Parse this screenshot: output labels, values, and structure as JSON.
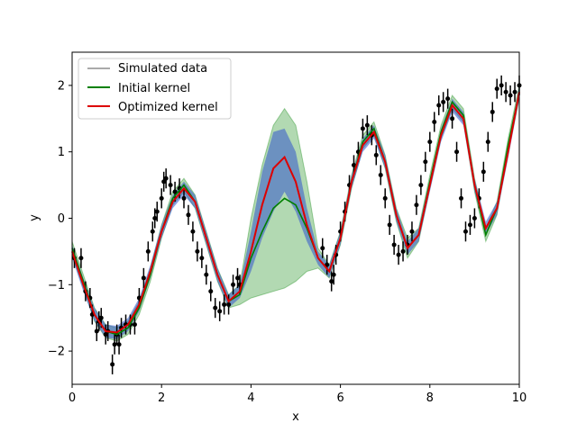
{
  "chart_data": {
    "type": "line",
    "xlabel": "x",
    "ylabel": "y",
    "xlim": [
      0,
      10
    ],
    "ylim": [
      -2.5,
      2.5
    ],
    "xticks": [
      0,
      2,
      4,
      6,
      8,
      10
    ],
    "yticks": [
      -2,
      -1,
      0,
      1,
      2
    ],
    "grid": false,
    "legend": {
      "placement": "top-left",
      "entries": [
        {
          "label": "Simulated data",
          "color": "#aaaaaa"
        },
        {
          "label": "Initial kernel",
          "color": "#008000"
        },
        {
          "label": "Optimized kernel",
          "color": "#dd0000"
        }
      ]
    },
    "data_gap": [
      3.8,
      5.5
    ],
    "data_points": {
      "x": [
        0.05,
        0.2,
        0.3,
        0.4,
        0.45,
        0.55,
        0.6,
        0.65,
        0.75,
        0.8,
        0.9,
        0.95,
        1.0,
        1.05,
        1.1,
        1.2,
        1.3,
        1.4,
        1.5,
        1.6,
        1.7,
        1.8,
        1.85,
        1.9,
        2.0,
        2.05,
        2.1,
        2.2,
        2.3,
        2.4,
        2.5,
        2.6,
        2.7,
        2.8,
        2.9,
        3.0,
        3.1,
        3.2,
        3.3,
        3.4,
        3.5,
        3.6,
        3.7,
        3.75,
        5.6,
        5.7,
        5.8,
        5.85,
        5.9,
        6.0,
        6.1,
        6.2,
        6.3,
        6.4,
        6.5,
        6.6,
        6.7,
        6.8,
        6.9,
        7.0,
        7.1,
        7.2,
        7.3,
        7.4,
        7.5,
        7.6,
        7.7,
        7.8,
        7.9,
        8.0,
        8.1,
        8.2,
        8.3,
        8.4,
        8.5,
        8.6,
        8.7,
        8.8,
        8.9,
        9.0,
        9.1,
        9.2,
        9.3,
        9.4,
        9.5,
        9.6,
        9.7,
        9.8,
        9.9,
        10.0
      ],
      "y": [
        -0.6,
        -0.6,
        -1.1,
        -1.2,
        -1.45,
        -1.7,
        -1.55,
        -1.5,
        -1.75,
        -1.7,
        -2.2,
        -1.9,
        -1.75,
        -1.9,
        -1.65,
        -1.6,
        -1.6,
        -1.6,
        -1.2,
        -0.9,
        -0.5,
        -0.2,
        0.0,
        0.1,
        0.3,
        0.55,
        0.6,
        0.5,
        0.4,
        0.45,
        0.3,
        0.05,
        -0.2,
        -0.5,
        -0.6,
        -0.85,
        -1.1,
        -1.35,
        -1.4,
        -1.3,
        -1.3,
        -1.0,
        -0.9,
        -1.0,
        -0.45,
        -0.7,
        -0.95,
        -0.85,
        -0.55,
        -0.2,
        0.1,
        0.5,
        0.8,
        1.0,
        1.35,
        1.4,
        1.25,
        0.95,
        0.65,
        0.3,
        -0.1,
        -0.4,
        -0.55,
        -0.5,
        -0.4,
        -0.2,
        0.2,
        0.5,
        0.85,
        1.15,
        1.45,
        1.7,
        1.75,
        1.8,
        1.5,
        1.0,
        0.3,
        -0.2,
        -0.1,
        0.0,
        0.3,
        0.7,
        1.15,
        1.6,
        1.95,
        2.0,
        1.9,
        1.85,
        1.9,
        2.0
      ]
    },
    "initial_kernel": {
      "x": [
        0,
        0.25,
        0.5,
        0.75,
        1.0,
        1.25,
        1.5,
        1.75,
        2.0,
        2.25,
        2.5,
        2.75,
        3.0,
        3.25,
        3.5,
        3.75,
        4.0,
        4.25,
        4.5,
        4.75,
        5.0,
        5.25,
        5.5,
        5.75,
        6.0,
        6.25,
        6.5,
        6.75,
        7.0,
        7.25,
        7.5,
        7.75,
        8.0,
        8.25,
        8.5,
        8.75,
        9.0,
        9.25,
        9.5,
        9.75,
        10.0
      ],
      "mean": [
        -0.45,
        -0.95,
        -1.45,
        -1.7,
        -1.75,
        -1.65,
        -1.35,
        -0.85,
        -0.2,
        0.3,
        0.5,
        0.25,
        -0.3,
        -0.85,
        -1.25,
        -1.15,
        -0.6,
        -0.2,
        0.15,
        0.3,
        0.2,
        -0.15,
        -0.6,
        -0.8,
        -0.3,
        0.55,
        1.15,
        1.35,
        0.85,
        0.05,
        -0.45,
        -0.25,
        0.55,
        1.3,
        1.75,
        1.55,
        0.5,
        -0.25,
        0.15,
        1.1,
        1.9
      ],
      "lower": [
        -0.55,
        -1.05,
        -1.55,
        -1.8,
        -1.85,
        -1.75,
        -1.45,
        -0.95,
        -0.3,
        0.2,
        0.4,
        0.15,
        -0.4,
        -0.95,
        -1.35,
        -1.3,
        -1.2,
        -1.15,
        -1.1,
        -1.05,
        -0.95,
        -0.8,
        -0.75,
        -0.9,
        -0.4,
        0.45,
        1.05,
        1.25,
        0.75,
        -0.05,
        -0.6,
        -0.35,
        0.45,
        1.2,
        1.65,
        1.45,
        0.4,
        -0.35,
        0.05,
        1.0,
        1.8
      ],
      "upper": [
        -0.35,
        -0.85,
        -1.35,
        -1.6,
        -1.65,
        -1.55,
        -1.25,
        -0.75,
        -0.1,
        0.4,
        0.6,
        0.35,
        -0.2,
        -0.75,
        -1.15,
        -1.0,
        0.0,
        0.8,
        1.4,
        1.65,
        1.4,
        0.55,
        -0.45,
        -0.7,
        -0.2,
        0.65,
        1.25,
        1.45,
        0.95,
        0.15,
        -0.3,
        -0.15,
        0.65,
        1.4,
        1.85,
        1.65,
        0.6,
        -0.15,
        0.25,
        1.2,
        2.0
      ]
    },
    "optimized_kernel": {
      "x": [
        0,
        0.25,
        0.5,
        0.75,
        1.0,
        1.25,
        1.5,
        1.75,
        2.0,
        2.25,
        2.5,
        2.75,
        3.0,
        3.25,
        3.5,
        3.75,
        4.0,
        4.25,
        4.5,
        4.75,
        5.0,
        5.25,
        5.5,
        5.75,
        6.0,
        6.25,
        6.5,
        6.75,
        7.0,
        7.25,
        7.5,
        7.75,
        8.0,
        8.25,
        8.5,
        8.75,
        9.0,
        9.25,
        9.5,
        9.75,
        10.0
      ],
      "mean": [
        -0.5,
        -1.0,
        -1.45,
        -1.7,
        -1.72,
        -1.6,
        -1.3,
        -0.8,
        -0.2,
        0.25,
        0.45,
        0.25,
        -0.3,
        -0.85,
        -1.25,
        -1.1,
        -0.5,
        0.2,
        0.75,
        0.92,
        0.55,
        -0.1,
        -0.6,
        -0.8,
        -0.3,
        0.55,
        1.1,
        1.3,
        0.85,
        0.05,
        -0.45,
        -0.25,
        0.5,
        1.25,
        1.7,
        1.5,
        0.5,
        -0.15,
        0.15,
        1.0,
        1.9
      ],
      "lower": [
        -0.6,
        -1.1,
        -1.55,
        -1.8,
        -1.82,
        -1.7,
        -1.4,
        -0.9,
        -0.3,
        0.15,
        0.35,
        0.15,
        -0.4,
        -0.95,
        -1.35,
        -1.2,
        -0.8,
        -0.3,
        0.1,
        0.4,
        0.1,
        -0.35,
        -0.7,
        -0.9,
        -0.4,
        0.45,
        1.0,
        1.2,
        0.75,
        -0.05,
        -0.55,
        -0.35,
        0.4,
        1.15,
        1.6,
        1.4,
        0.4,
        -0.25,
        0.05,
        0.9,
        1.8
      ],
      "upper": [
        -0.4,
        -0.9,
        -1.35,
        -1.6,
        -1.62,
        -1.5,
        -1.2,
        -0.7,
        -0.1,
        0.35,
        0.55,
        0.35,
        -0.2,
        -0.75,
        -1.15,
        -1.0,
        -0.2,
        0.7,
        1.3,
        1.35,
        1.0,
        0.15,
        -0.5,
        -0.7,
        -0.2,
        0.65,
        1.2,
        1.4,
        0.95,
        0.15,
        -0.35,
        -0.15,
        0.6,
        1.35,
        1.8,
        1.6,
        0.6,
        -0.05,
        0.25,
        1.1,
        2.0
      ]
    }
  }
}
